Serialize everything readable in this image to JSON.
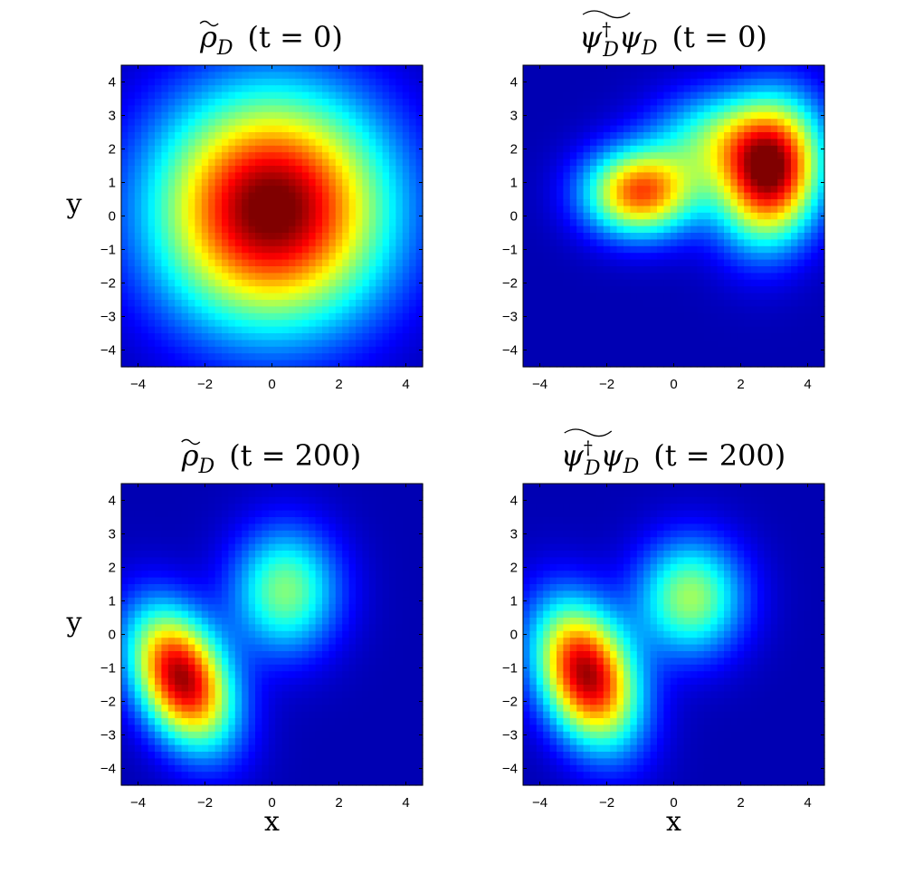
{
  "chart_data": [
    {
      "type": "heatmap",
      "title": "ρ̃_D  (t = 0)",
      "title_parts": {
        "main": "ρ",
        "sub": "D",
        "time": "(t = 0)"
      },
      "xlim": [
        -4.5,
        4.5
      ],
      "ylim": [
        -4.5,
        4.5
      ],
      "xticks": [
        -4,
        -2,
        0,
        2,
        4
      ],
      "yticks": [
        -4,
        -3,
        -2,
        -1,
        0,
        1,
        2,
        3,
        4
      ],
      "xlabel": "",
      "ylabel": "y",
      "colormap": "jet",
      "blobs": [
        {
          "x": 0.0,
          "y": 0.2,
          "amp": 1.0,
          "sx": 2.4,
          "sy": 2.4,
          "rho": 0.0
        }
      ],
      "floor": 0.04
    },
    {
      "type": "heatmap",
      "title": "ψ†_D ψ_D  (t = 0)",
      "title_parts": {
        "main": "ψ",
        "dagger": "†",
        "sub": "D",
        "main2": "ψ",
        "sub2": "D",
        "time": "(t = 0)"
      },
      "xlim": [
        -4.5,
        4.5
      ],
      "ylim": [
        -4.5,
        4.5
      ],
      "xticks": [
        -4,
        -2,
        0,
        2,
        4
      ],
      "yticks": [
        -4,
        -3,
        -2,
        -1,
        0,
        1,
        2,
        3,
        4
      ],
      "xlabel": "",
      "ylabel": "",
      "colormap": "jet",
      "blobs": [
        {
          "x": 2.9,
          "y": 1.3,
          "amp": 0.92,
          "sx": 1.05,
          "sy": 1.45,
          "rho": 0.1
        },
        {
          "x": -1.0,
          "y": 0.7,
          "amp": 0.74,
          "sx": 1.15,
          "sy": 0.9,
          "rho": 0.0
        },
        {
          "x": 1.2,
          "y": 2.3,
          "amp": 0.35,
          "sx": 1.3,
          "sy": 1.0,
          "rho": 0.0
        }
      ],
      "floor": 0.05
    },
    {
      "type": "heatmap",
      "title": "ρ̃_D  (t = 200)",
      "title_parts": {
        "main": "ρ",
        "sub": "D",
        "time": "(t = 200)"
      },
      "xlim": [
        -4.5,
        4.5
      ],
      "ylim": [
        -4.5,
        4.5
      ],
      "xticks": [
        -4,
        -2,
        0,
        2,
        4
      ],
      "yticks": [
        -4,
        -3,
        -2,
        -1,
        0,
        1,
        2,
        3,
        4
      ],
      "xlabel": "x",
      "ylabel": "y",
      "colormap": "jet",
      "blobs": [
        {
          "x": -2.7,
          "y": -1.3,
          "amp": 0.92,
          "sx": 1.05,
          "sy": 1.4,
          "rho": -0.35
        },
        {
          "x": 0.4,
          "y": 1.3,
          "amp": 0.45,
          "sx": 1.1,
          "sy": 1.3,
          "rho": 0.0
        }
      ],
      "floor": 0.05
    },
    {
      "type": "heatmap",
      "title": "ψ†_D ψ_D  (t = 200)",
      "title_parts": {
        "main": "ψ",
        "dagger": "†",
        "sub": "D",
        "main2": "ψ",
        "sub2": "D",
        "time": "(t = 200)"
      },
      "xlim": [
        -4.5,
        4.5
      ],
      "ylim": [
        -4.5,
        4.5
      ],
      "xticks": [
        -4,
        -2,
        0,
        2,
        4
      ],
      "yticks": [
        -4,
        -3,
        -2,
        -1,
        0,
        1,
        2,
        3,
        4
      ],
      "xlabel": "x",
      "ylabel": "",
      "colormap": "jet",
      "blobs": [
        {
          "x": -2.6,
          "y": -1.2,
          "amp": 0.92,
          "sx": 1.05,
          "sy": 1.45,
          "rho": -0.3
        },
        {
          "x": 0.5,
          "y": 1.1,
          "amp": 0.48,
          "sx": 1.1,
          "sy": 1.2,
          "rho": 0.0
        }
      ],
      "floor": 0.05
    }
  ]
}
